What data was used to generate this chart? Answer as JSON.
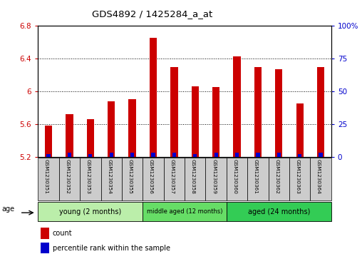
{
  "title": "GDS4892 / 1425284_a_at",
  "samples": [
    "GSM1230351",
    "GSM1230352",
    "GSM1230353",
    "GSM1230354",
    "GSM1230355",
    "GSM1230356",
    "GSM1230357",
    "GSM1230358",
    "GSM1230359",
    "GSM1230360",
    "GSM1230361",
    "GSM1230362",
    "GSM1230363",
    "GSM1230364"
  ],
  "counts": [
    5.58,
    5.72,
    5.66,
    5.88,
    5.9,
    6.65,
    6.3,
    6.06,
    6.05,
    6.43,
    6.3,
    6.27,
    5.85,
    6.3
  ],
  "percentile": [
    2,
    3,
    2,
    3,
    3,
    3,
    3,
    2,
    3,
    3,
    3,
    3,
    2,
    3
  ],
  "ylim_left": [
    5.2,
    6.8
  ],
  "ylim_right": [
    0,
    100
  ],
  "yticks_left": [
    5.2,
    5.6,
    6.0,
    6.4,
    6.8
  ],
  "yticks_right": [
    0,
    25,
    50,
    75,
    100
  ],
  "ytick_labels_right": [
    "0",
    "25",
    "50",
    "75",
    "100%"
  ],
  "bar_color": "#cc0000",
  "percentile_color": "#0000cc",
  "groups": [
    {
      "label": "young (2 months)",
      "start": 0,
      "end": 5,
      "color": "#bbeeaa"
    },
    {
      "label": "middle aged (12 months)",
      "start": 5,
      "end": 9,
      "color": "#66dd66"
    },
    {
      "label": "aged (24 months)",
      "start": 9,
      "end": 14,
      "color": "#33cc55"
    }
  ],
  "age_label": "age",
  "legend": [
    {
      "label": "count",
      "color": "#cc0000"
    },
    {
      "label": "percentile rank within the sample",
      "color": "#0000cc"
    }
  ],
  "background_color": "#ffffff",
  "label_bg_color": "#cccccc",
  "bar_width": 0.35,
  "perc_bar_width": 0.18
}
